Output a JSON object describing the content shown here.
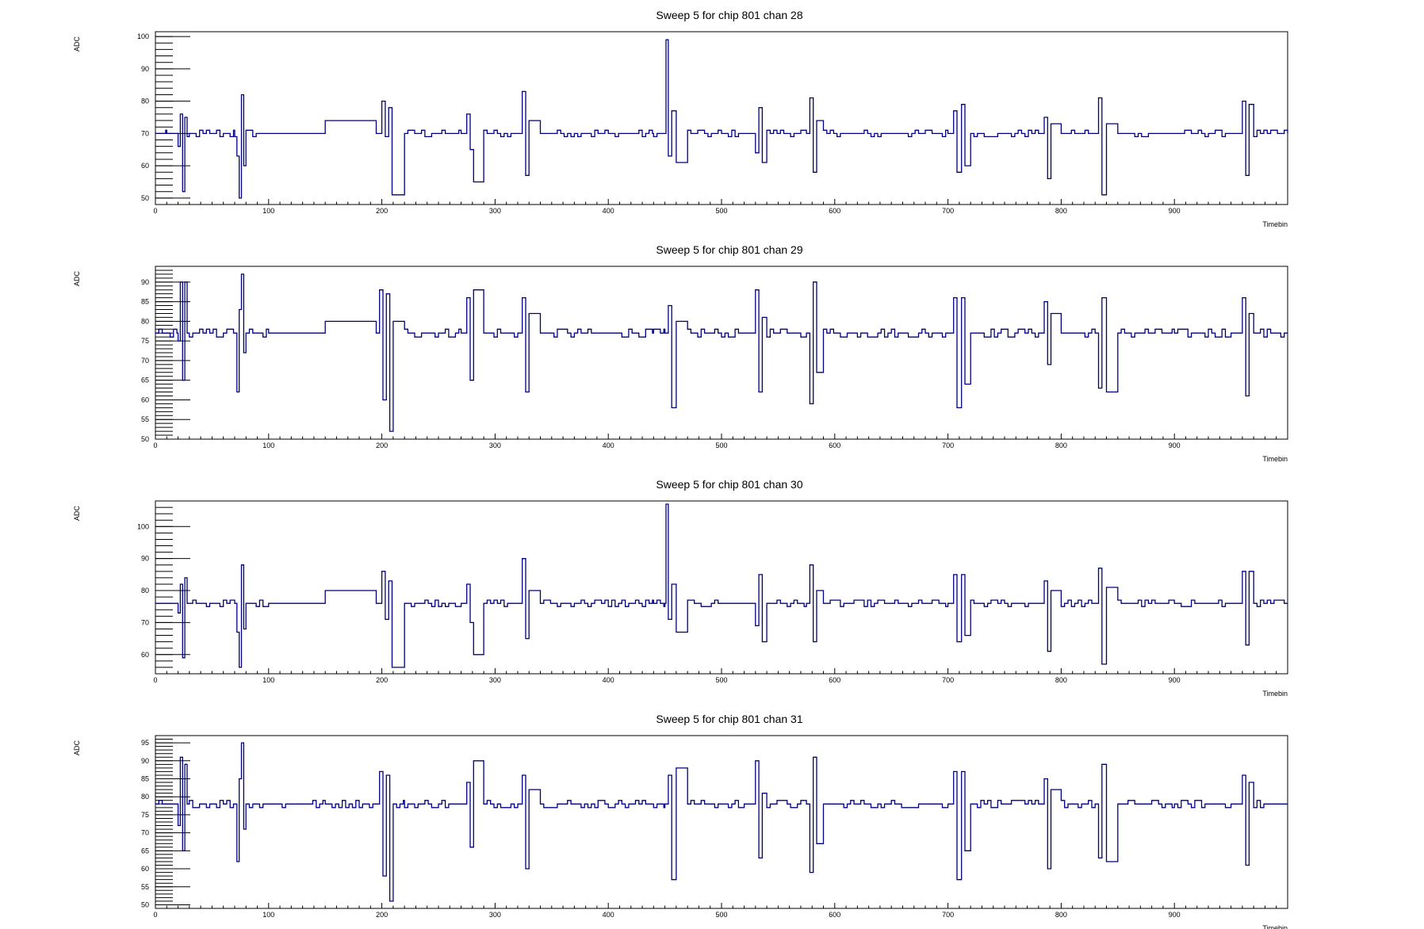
{
  "colors": {
    "trace": "#00007f",
    "axis": "#000000",
    "background": "#ffffff"
  },
  "chart_data": [
    {
      "type": "line",
      "title": "Sweep 5 for chip 801 chan 28",
      "xlabel": "Timebin",
      "ylabel": "ADC",
      "xlim": [
        0,
        1000
      ],
      "ylim": [
        48,
        101.5
      ],
      "xticks": [
        0,
        100,
        200,
        300,
        400,
        500,
        600,
        700,
        800,
        900
      ],
      "yticks": [
        50,
        60,
        70,
        80,
        90,
        100
      ],
      "baseline": 70,
      "grid": false,
      "legend": "none",
      "x": [
        0,
        10,
        20,
        22,
        24,
        26,
        28,
        30,
        60,
        70,
        72,
        74,
        76,
        78,
        80,
        100,
        150,
        195,
        200,
        203,
        206,
        209,
        220,
        270,
        275,
        278,
        281,
        290,
        320,
        324,
        327,
        330,
        340,
        400,
        440,
        450,
        451,
        453,
        456,
        460,
        470,
        520,
        530,
        533,
        536,
        540,
        575,
        578,
        581,
        584,
        590,
        650,
        700,
        705,
        708,
        712,
        715,
        720,
        780,
        785,
        788,
        791,
        800,
        830,
        833,
        836,
        840,
        850,
        900,
        950,
        960,
        963,
        966,
        970,
        1000
      ],
      "values": [
        69,
        70,
        66,
        76,
        52,
        75,
        69,
        70,
        70,
        69,
        63,
        50,
        82,
        60,
        70,
        70,
        74,
        70,
        80,
        69,
        78,
        51,
        70,
        70,
        76,
        65,
        55,
        70,
        70,
        83,
        57,
        74,
        70,
        70,
        70,
        70,
        99,
        63,
        77,
        61,
        70,
        70,
        64,
        78,
        61,
        70,
        70,
        81,
        58,
        74,
        70,
        70,
        70,
        77,
        58,
        79,
        60,
        70,
        70,
        75,
        56,
        73,
        70,
        70,
        81,
        51,
        73,
        70,
        70,
        70,
        80,
        57,
        79,
        70,
        70
      ]
    },
    {
      "type": "line",
      "title": "Sweep 5 for chip 801 chan 29",
      "xlabel": "Timebin",
      "ylabel": "ADC",
      "xlim": [
        0,
        1000
      ],
      "ylim": [
        50,
        94
      ],
      "xticks": [
        0,
        100,
        200,
        300,
        400,
        500,
        600,
        700,
        800,
        900
      ],
      "yticks": [
        50,
        55,
        60,
        65,
        70,
        75,
        80,
        85,
        90
      ],
      "baseline": 77,
      "grid": false,
      "legend": "none",
      "x": [
        0,
        10,
        20,
        22,
        24,
        26,
        28,
        30,
        60,
        70,
        72,
        74,
        76,
        78,
        80,
        100,
        150,
        195,
        198,
        201,
        204,
        207,
        210,
        220,
        270,
        275,
        278,
        281,
        290,
        320,
        324,
        327,
        330,
        340,
        400,
        440,
        450,
        453,
        456,
        460,
        470,
        520,
        530,
        533,
        536,
        540,
        575,
        578,
        581,
        584,
        590,
        650,
        700,
        705,
        708,
        712,
        715,
        720,
        780,
        785,
        788,
        791,
        800,
        830,
        833,
        836,
        840,
        850,
        900,
        950,
        960,
        963,
        966,
        970,
        1000
      ],
      "values": [
        76,
        77,
        75,
        90,
        65,
        90,
        77,
        77,
        77,
        77,
        62,
        83,
        92,
        72,
        77,
        77,
        80,
        77,
        88,
        60,
        87,
        52,
        80,
        77,
        77,
        86,
        65,
        88,
        77,
        77,
        86,
        62,
        82,
        77,
        77,
        77,
        77,
        84,
        58,
        80,
        77,
        77,
        88,
        62,
        81,
        77,
        77,
        59,
        90,
        67,
        77,
        77,
        77,
        86,
        58,
        86,
        64,
        77,
        77,
        85,
        69,
        82,
        77,
        77,
        63,
        86,
        62,
        77,
        77,
        77,
        86,
        61,
        82,
        77,
        77
      ]
    },
    {
      "type": "line",
      "title": "Sweep 5 for chip 801 chan 30",
      "xlabel": "Timebin",
      "ylabel": "ADC",
      "xlim": [
        0,
        1000
      ],
      "ylim": [
        54,
        108
      ],
      "xticks": [
        0,
        100,
        200,
        300,
        400,
        500,
        600,
        700,
        800,
        900
      ],
      "yticks": [
        60,
        70,
        80,
        90,
        100
      ],
      "baseline": 76,
      "grid": false,
      "legend": "none",
      "x": [
        0,
        10,
        20,
        22,
        24,
        26,
        28,
        30,
        60,
        70,
        72,
        74,
        76,
        78,
        80,
        100,
        150,
        195,
        200,
        203,
        206,
        209,
        220,
        270,
        275,
        278,
        281,
        290,
        320,
        324,
        327,
        330,
        340,
        400,
        440,
        450,
        451,
        453,
        456,
        460,
        470,
        520,
        530,
        533,
        536,
        540,
        575,
        578,
        581,
        584,
        590,
        650,
        700,
        705,
        708,
        712,
        715,
        720,
        780,
        785,
        788,
        791,
        800,
        830,
        833,
        836,
        840,
        850,
        900,
        950,
        960,
        963,
        966,
        970,
        1000
      ],
      "values": [
        75,
        76,
        73,
        82,
        59,
        84,
        76,
        76,
        76,
        76,
        67,
        56,
        88,
        68,
        76,
        76,
        80,
        76,
        86,
        71,
        83,
        56,
        76,
        76,
        82,
        70,
        60,
        76,
        76,
        90,
        65,
        80,
        76,
        76,
        76,
        76,
        107,
        71,
        82,
        67,
        76,
        76,
        69,
        85,
        64,
        76,
        76,
        88,
        64,
        80,
        76,
        76,
        76,
        85,
        64,
        85,
        66,
        76,
        76,
        83,
        61,
        80,
        76,
        76,
        87,
        57,
        81,
        76,
        76,
        76,
        86,
        63,
        86,
        76,
        76
      ]
    },
    {
      "type": "line",
      "title": "Sweep 5 for chip 801 chan 31",
      "xlabel": "Timebin",
      "ylabel": "ADC",
      "xlim": [
        0,
        1000
      ],
      "ylim": [
        49,
        97
      ],
      "xticks": [
        0,
        100,
        200,
        300,
        400,
        500,
        600,
        700,
        800,
        900
      ],
      "yticks": [
        50,
        55,
        60,
        65,
        70,
        75,
        80,
        85,
        90,
        95
      ],
      "baseline": 78,
      "grid": false,
      "legend": "none",
      "x": [
        0,
        10,
        20,
        22,
        24,
        26,
        28,
        30,
        60,
        70,
        72,
        74,
        76,
        78,
        80,
        100,
        150,
        195,
        198,
        201,
        204,
        207,
        210,
        220,
        270,
        275,
        278,
        281,
        290,
        320,
        324,
        327,
        330,
        340,
        400,
        440,
        450,
        453,
        456,
        460,
        470,
        520,
        530,
        533,
        536,
        540,
        575,
        578,
        581,
        584,
        590,
        650,
        700,
        705,
        708,
        712,
        715,
        720,
        780,
        785,
        788,
        791,
        800,
        830,
        833,
        836,
        840,
        850,
        900,
        950,
        960,
        963,
        966,
        970,
        1000
      ],
      "values": [
        77,
        78,
        72,
        91,
        65,
        89,
        78,
        78,
        78,
        78,
        62,
        85,
        95,
        71,
        78,
        78,
        80,
        78,
        87,
        58,
        86,
        51,
        79,
        78,
        78,
        84,
        66,
        90,
        78,
        78,
        86,
        60,
        82,
        78,
        78,
        78,
        78,
        86,
        57,
        88,
        78,
        78,
        90,
        63,
        81,
        78,
        78,
        59,
        91,
        67,
        78,
        78,
        78,
        87,
        57,
        87,
        65,
        78,
        78,
        85,
        60,
        82,
        78,
        78,
        63,
        89,
        62,
        78,
        78,
        78,
        86,
        61,
        84,
        78,
        78
      ]
    }
  ]
}
